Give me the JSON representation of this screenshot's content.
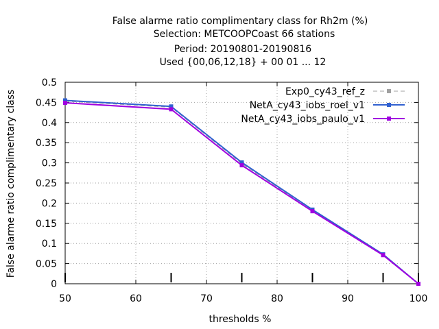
{
  "chart_data": {
    "type": "line",
    "title_lines": [
      "False alarme ratio complimentary class  for Rh2m (%)",
      "Selection: METCOOPCoast     66 stations",
      "Period: 20190801-20190816",
      "Used {00,06,12,18} + 00 01 ... 12"
    ],
    "xlabel": "thresholds %",
    "ylabel": "False alarme ratio complimentary class",
    "xlim": [
      50,
      100
    ],
    "ylim": [
      0,
      0.5
    ],
    "xticks": [
      "50",
      "60",
      "70",
      "80",
      "90",
      "100"
    ],
    "yticks": [
      "0",
      "0.05",
      "0.1",
      "0.15",
      "0.2",
      "0.25",
      "0.3",
      "0.35",
      "0.4",
      "0.45",
      "0.5"
    ],
    "x": [
      50,
      65,
      75,
      85,
      95,
      100
    ],
    "grid": true,
    "legend_position": "top-right",
    "series": [
      {
        "name": "Exp0_cy43_ref_z",
        "values": [
          0.453,
          0.438,
          0.298,
          0.182,
          0.072,
          0.0
        ],
        "color": "#a0a0a0",
        "dash": true
      },
      {
        "name": "NetA_cy43_iobs_roel_v1",
        "values": [
          0.455,
          0.44,
          0.301,
          0.184,
          0.073,
          0.0
        ],
        "color": "#3060d0",
        "dash": false
      },
      {
        "name": "NetA_cy43_iobs_paulo_v1",
        "values": [
          0.449,
          0.433,
          0.294,
          0.18,
          0.071,
          0.0
        ],
        "color": "#a000e0",
        "dash": false
      }
    ]
  }
}
